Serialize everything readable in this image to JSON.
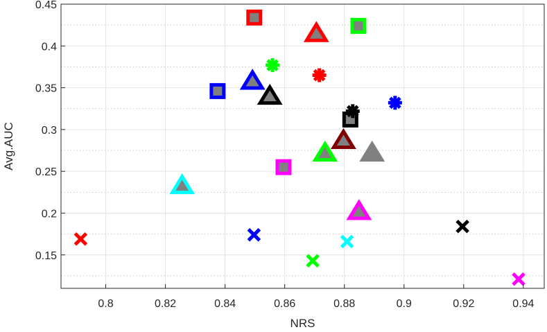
{
  "chart_data": {
    "type": "scatter",
    "xlabel": "NRS",
    "ylabel": "Avg.AUC",
    "xlim": [
      0.785,
      0.947
    ],
    "ylim": [
      0.11,
      0.45
    ],
    "x_ticks": [
      0.8,
      0.82,
      0.84,
      0.86,
      0.88,
      0.9,
      0.92,
      0.94
    ],
    "x_tick_labels": [
      "0.8",
      "0.82",
      "0.84",
      "0.86",
      "0.88",
      "0.9",
      "0.92",
      "0.94"
    ],
    "y_ticks": [
      0.15,
      0.2,
      0.25,
      0.3,
      0.35,
      0.4,
      0.45
    ],
    "y_tick_labels": [
      "0.15",
      "0.2",
      "0.25",
      "0.3",
      "0.35",
      "0.4",
      "0.45"
    ],
    "grid": "on",
    "minor_y_grid": "dotted",
    "points": [
      {
        "marker": "square",
        "color": "#ff0000",
        "x": 0.8498,
        "y": 0.434
      },
      {
        "marker": "square",
        "color": "#00ff00",
        "x": 0.8847,
        "y": 0.424
      },
      {
        "marker": "square",
        "color": "#0000ff",
        "x": 0.8375,
        "y": 0.346
      },
      {
        "marker": "square",
        "color": "#000000",
        "x": 0.882,
        "y": 0.312
      },
      {
        "marker": "square",
        "color": "#ff00ff",
        "x": 0.8596,
        "y": 0.255
      },
      {
        "marker": "triangle",
        "color": "#ff0000",
        "x": 0.8706,
        "y": 0.415
      },
      {
        "marker": "triangle",
        "color": "#0000ff",
        "x": 0.8492,
        "y": 0.358
      },
      {
        "marker": "triangle",
        "color": "#000000",
        "x": 0.855,
        "y": 0.34
      },
      {
        "marker": "triangle",
        "color": "#800000",
        "x": 0.8797,
        "y": 0.287
      },
      {
        "marker": "triangle",
        "color": "#808080",
        "x": 0.8893,
        "y": 0.272
      },
      {
        "marker": "triangle",
        "color": "#00ff00",
        "x": 0.8735,
        "y": 0.272
      },
      {
        "marker": "triangle",
        "color": "#00ffff",
        "x": 0.8256,
        "y": 0.233
      },
      {
        "marker": "triangle",
        "color": "#ff00ff",
        "x": 0.8849,
        "y": 0.202
      },
      {
        "marker": "asterisk",
        "color": "#00ff00",
        "x": 0.8559,
        "y": 0.377
      },
      {
        "marker": "asterisk",
        "color": "#ff0000",
        "x": 0.8716,
        "y": 0.365
      },
      {
        "marker": "asterisk",
        "color": "#0000ff",
        "x": 0.897,
        "y": 0.332
      },
      {
        "marker": "asterisk",
        "color": "#000000",
        "x": 0.8828,
        "y": 0.322
      },
      {
        "marker": "x",
        "color": "#ff0000",
        "x": 0.7916,
        "y": 0.169
      },
      {
        "marker": "x",
        "color": "#0000ff",
        "x": 0.8497,
        "y": 0.174
      },
      {
        "marker": "x",
        "color": "#00ffff",
        "x": 0.8809,
        "y": 0.166
      },
      {
        "marker": "x",
        "color": "#00ff00",
        "x": 0.8694,
        "y": 0.143
      },
      {
        "marker": "x",
        "color": "#000000",
        "x": 0.9196,
        "y": 0.184
      },
      {
        "marker": "x",
        "color": "#ff00ff",
        "x": 0.9384,
        "y": 0.121
      }
    ]
  }
}
